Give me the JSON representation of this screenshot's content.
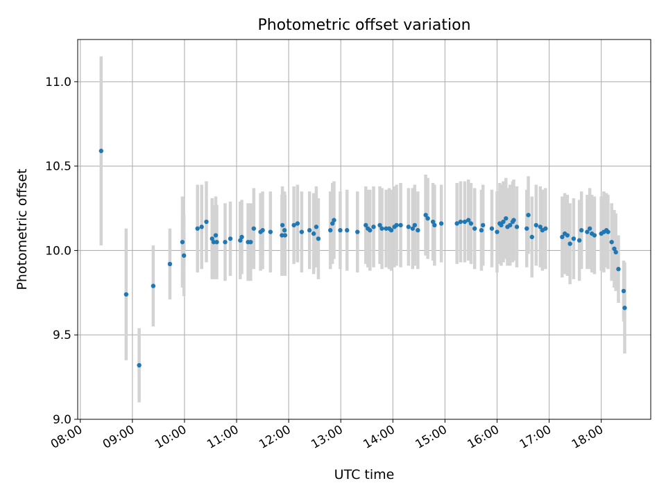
{
  "chart_data": {
    "type": "scatter",
    "title": "Photometric offset variation",
    "xlabel": "UTC time",
    "ylabel": "Photometric offset",
    "x_unit": "hours UTC",
    "xlim": [
      7.95,
      18.95
    ],
    "ylim": [
      9.0,
      11.25
    ],
    "x_ticks": [
      8,
      9,
      10,
      11,
      12,
      13,
      14,
      15,
      16,
      17,
      18
    ],
    "x_tick_labels": [
      "08:00",
      "09:00",
      "10:00",
      "11:00",
      "12:00",
      "13:00",
      "14:00",
      "15:00",
      "16:00",
      "17:00",
      "18:00"
    ],
    "y_ticks": [
      9.0,
      9.5,
      10.0,
      10.5,
      11.0
    ],
    "y_tick_labels": [
      "9.0",
      "9.5",
      "10.0",
      "10.5",
      "11.0"
    ],
    "grid": true,
    "colors": {
      "marker": "#1f77b4",
      "errorbar": "#d3d3d3",
      "grid": "#b0b0b0"
    },
    "series": [
      {
        "x": [
          8.4,
          8.88,
          9.13,
          9.4,
          9.72,
          9.96,
          9.99,
          10.25,
          10.33,
          10.42,
          10.53,
          10.56,
          10.6,
          10.62,
          10.78,
          10.88,
          11.07,
          11.1,
          11.22,
          11.27,
          11.33,
          11.46,
          11.5,
          11.65,
          11.87,
          11.88,
          11.92,
          11.93,
          12.1,
          12.17,
          12.25,
          12.4,
          12.48,
          12.53,
          12.57,
          12.8,
          12.84,
          12.87,
          12.99,
          13.12,
          13.32,
          13.48,
          13.52,
          13.56,
          13.63,
          13.75,
          13.79,
          13.87,
          13.93,
          13.97,
          14.03,
          14.07,
          14.15,
          14.3,
          14.38,
          14.42,
          14.48,
          14.63,
          14.67,
          14.77,
          14.8,
          14.93,
          15.23,
          15.3,
          15.38,
          15.45,
          15.5,
          15.57,
          15.7,
          15.73,
          15.9,
          16.0,
          16.05,
          16.08,
          16.12,
          16.17,
          16.2,
          16.25,
          16.3,
          16.32,
          16.38,
          16.57,
          16.6,
          16.67,
          16.75,
          16.83,
          16.87,
          16.93,
          17.25,
          17.3,
          17.35,
          17.4,
          17.47,
          17.58,
          17.62,
          17.73,
          17.78,
          17.82,
          17.87,
          18.0,
          18.05,
          18.1,
          18.13,
          18.2,
          18.25,
          18.28,
          18.33,
          18.43,
          18.45
        ],
        "y": [
          10.59,
          9.74,
          9.32,
          9.79,
          9.92,
          10.05,
          9.97,
          10.13,
          10.14,
          10.17,
          10.07,
          10.05,
          10.09,
          10.05,
          10.05,
          10.07,
          10.06,
          10.08,
          10.05,
          10.05,
          10.13,
          10.11,
          10.12,
          10.11,
          10.09,
          10.15,
          10.12,
          10.09,
          10.15,
          10.16,
          10.11,
          10.12,
          10.1,
          10.14,
          10.07,
          10.12,
          10.16,
          10.18,
          10.12,
          10.12,
          10.11,
          10.15,
          10.13,
          10.12,
          10.14,
          10.15,
          10.13,
          10.13,
          10.13,
          10.12,
          10.14,
          10.15,
          10.15,
          10.14,
          10.13,
          10.15,
          10.12,
          10.21,
          10.19,
          10.17,
          10.15,
          10.16,
          10.16,
          10.17,
          10.17,
          10.18,
          10.16,
          10.13,
          10.12,
          10.15,
          10.13,
          10.11,
          10.16,
          10.15,
          10.17,
          10.19,
          10.14,
          10.15,
          10.17,
          10.18,
          10.14,
          10.13,
          10.21,
          10.08,
          10.15,
          10.14,
          10.12,
          10.13,
          10.08,
          10.1,
          10.09,
          10.04,
          10.07,
          10.06,
          10.12,
          10.11,
          10.13,
          10.1,
          10.09,
          10.1,
          10.11,
          10.12,
          10.11,
          10.05,
          10.01,
          9.99,
          9.89,
          9.76,
          9.66
        ],
        "yerr": [
          0.56,
          0.39,
          0.22,
          0.24,
          0.21,
          0.27,
          0.24,
          0.26,
          0.25,
          0.24,
          0.24,
          0.22,
          0.23,
          0.22,
          0.23,
          0.22,
          0.23,
          0.22,
          0.23,
          0.23,
          0.24,
          0.23,
          0.23,
          0.24,
          0.24,
          0.23,
          0.23,
          0.24,
          0.23,
          0.23,
          0.24,
          0.23,
          0.24,
          0.24,
          0.24,
          0.23,
          0.24,
          0.23,
          0.23,
          0.24,
          0.24,
          0.23,
          0.23,
          0.24,
          0.24,
          0.23,
          0.24,
          0.23,
          0.24,
          0.24,
          0.24,
          0.24,
          0.25,
          0.23,
          0.24,
          0.24,
          0.23,
          0.24,
          0.24,
          0.23,
          0.24,
          0.23,
          0.24,
          0.24,
          0.24,
          0.24,
          0.24,
          0.24,
          0.24,
          0.24,
          0.23,
          0.24,
          0.24,
          0.24,
          0.24,
          0.24,
          0.23,
          0.24,
          0.24,
          0.24,
          0.24,
          0.23,
          0.23,
          0.24,
          0.24,
          0.24,
          0.24,
          0.24,
          0.24,
          0.24,
          0.24,
          0.24,
          0.24,
          0.24,
          0.23,
          0.22,
          0.24,
          0.23,
          0.23,
          0.22,
          0.24,
          0.22,
          0.22,
          0.23,
          0.23,
          0.23,
          0.2,
          0.18,
          0.27
        ]
      }
    ]
  }
}
